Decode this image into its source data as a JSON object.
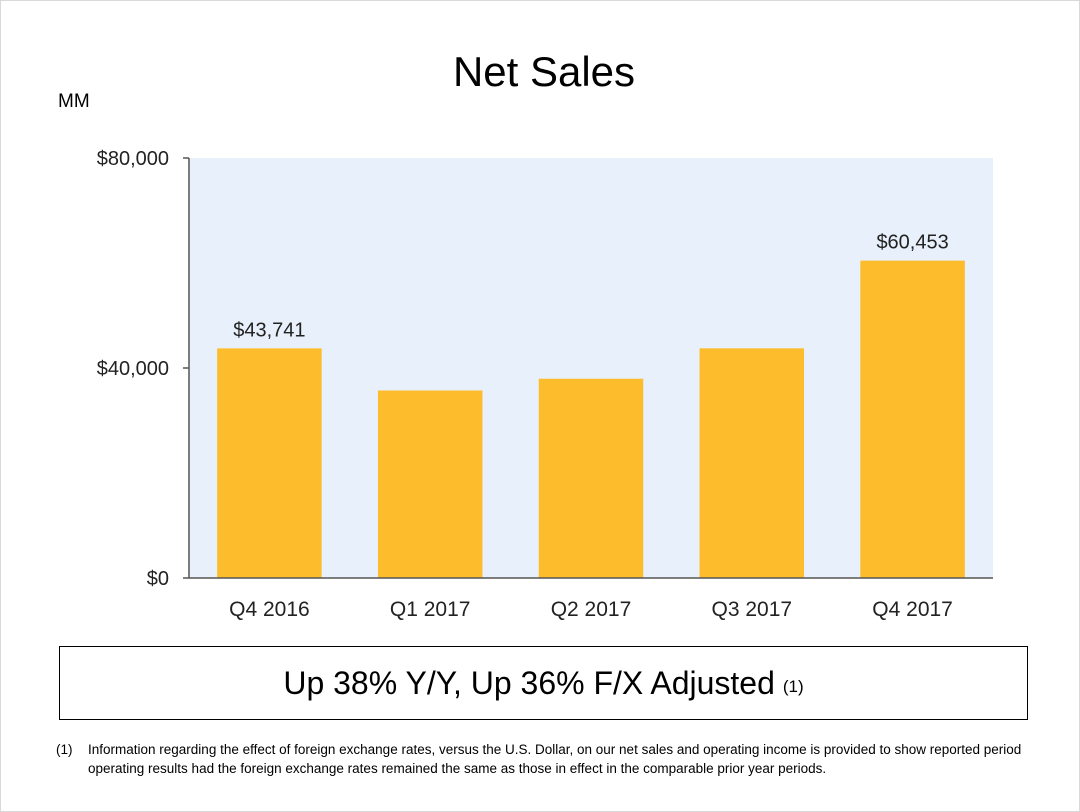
{
  "slide": {
    "title": "Net Sales",
    "unit": "MM",
    "callout_text": "Up 38% Y/Y, Up 36% F/X Adjusted",
    "callout_ref": "(1)",
    "footnote_number": "(1)",
    "footnote_text": "Information regarding the effect of foreign exchange rates, versus the U.S. Dollar, on our net sales and operating income is provided to show reported period operating results had the foreign exchange rates remained the same as those in effect in the comparable prior year periods."
  },
  "chart_data": {
    "type": "bar",
    "title": "Net Sales",
    "ylabel": "MM",
    "categories": [
      "Q4 2016",
      "Q1 2017",
      "Q2 2017",
      "Q3 2017",
      "Q4 2017"
    ],
    "values": [
      43741,
      35714,
      37955,
      43744,
      60453
    ],
    "data_labels": [
      "$43,741",
      "",
      "",
      "",
      "$60,453"
    ],
    "ylim": [
      0,
      80000
    ],
    "yticks": [
      0,
      40000,
      80000
    ],
    "ytick_labels": [
      "$0",
      "$40,000",
      "$80,000"
    ],
    "grid": false,
    "legend": "none",
    "colors": {
      "bar": "#FDBC2C",
      "plot_background": "#E8F1FB",
      "axis": "#555555"
    }
  }
}
